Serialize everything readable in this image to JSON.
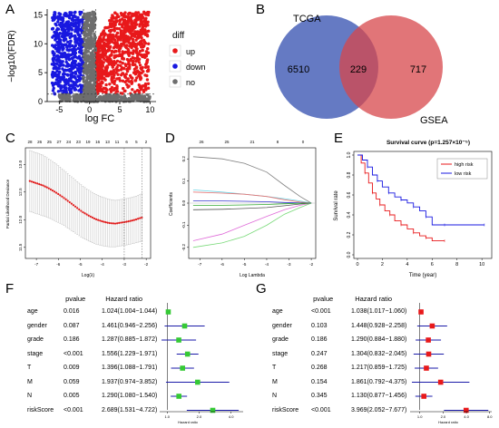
{
  "panels": {
    "A": {
      "label": "A",
      "xlabel": "log FC",
      "ylabel": "−log10(FDR)",
      "xticks": [
        "-5",
        "0",
        "5",
        "10"
      ],
      "yticks": [
        "0",
        "5",
        "10",
        "15"
      ],
      "legend_title": "diff",
      "legend": [
        {
          "name": "up",
          "color": "#e8191b"
        },
        {
          "name": "down",
          "color": "#1818e0"
        },
        {
          "name": "no",
          "color": "#6e6e6e"
        }
      ]
    },
    "B": {
      "label": "B",
      "set_left": "TCGA",
      "set_right": "GSEA",
      "left_only": "6510",
      "overlap": "229",
      "right_only": "717",
      "left_color": "#4a63b8",
      "right_color": "#d7474b"
    },
    "C": {
      "label": "C",
      "top_ticks": [
        "28",
        "26",
        "25",
        "27",
        "24",
        "23",
        "19",
        "16",
        "13",
        "11",
        "6",
        "5",
        "2"
      ],
      "xticks": [
        "-7",
        "-6",
        "-5",
        "-4",
        "-3",
        "-2"
      ],
      "yticks": [
        "11.5",
        "12.0",
        "12.5",
        "13.0"
      ],
      "xlabel": "Log(λ)",
      "ylabel": "Partial Likelihood Deviance"
    },
    "D": {
      "label": "D",
      "top_ticks": [
        "26",
        "25",
        "21",
        "8",
        "0"
      ],
      "xticks": [
        "-7",
        "-6",
        "-5",
        "-4",
        "-3",
        "-2"
      ],
      "yticks": [
        "-0.2",
        "-0.1",
        "0.0",
        "0.1",
        "0.2"
      ],
      "xlabel": "Log Lambda",
      "ylabel": "Coefficients"
    },
    "E": {
      "label": "E",
      "title": "Survival curve (p=1.257×10⁻⁵)",
      "xlabel": "Time (year)",
      "ylabel": "Survival rate",
      "xticks": [
        "0",
        "2",
        "4",
        "6",
        "8",
        "10"
      ],
      "yticks": [
        "0.0",
        "0.2",
        "0.4",
        "0.6",
        "0.8",
        "1.0"
      ],
      "legend": [
        {
          "name": "high risk",
          "color": "#e8191b"
        },
        {
          "name": "low risk",
          "color": "#1818e0"
        }
      ]
    },
    "F": {
      "label": "F",
      "headers": [
        "pvalue",
        "Hazard ratio"
      ],
      "rows": [
        {
          "name": "age",
          "p": "0.016",
          "hr": "1.024(1.004−1.044)"
        },
        {
          "name": "gender",
          "p": "0.087",
          "hr": "1.461(0.946−2.256)"
        },
        {
          "name": "grade",
          "p": "0.186",
          "hr": "1.287(0.885−1.872)"
        },
        {
          "name": "stage",
          "p": "<0.001",
          "hr": "1.556(1.229−1.971)"
        },
        {
          "name": "T",
          "p": "0.009",
          "hr": "1.396(1.088−1.791)"
        },
        {
          "name": "M",
          "p": "0.059",
          "hr": "1.937(0.974−3.852)"
        },
        {
          "name": "N",
          "p": "0.005",
          "hr": "1.290(1.080−1.540)"
        },
        {
          "name": "riskScore",
          "p": "<0.001",
          "hr": "2.689(1.531−4.722)"
        }
      ],
      "xticks": [
        "1.0",
        "2.0",
        "4.0"
      ],
      "xlabel": "Hazard ratio",
      "marker_color": "#35c935"
    },
    "G": {
      "label": "G",
      "headers": [
        "pvalue",
        "Hazard ratio"
      ],
      "rows": [
        {
          "name": "age",
          "p": "<0.001",
          "hr": "1.038(1.017−1.060)"
        },
        {
          "name": "gender",
          "p": "0.103",
          "hr": "1.448(0.928−2.258)"
        },
        {
          "name": "grade",
          "p": "0.186",
          "hr": "1.290(0.884−1.880)"
        },
        {
          "name": "stage",
          "p": "0.247",
          "hr": "1.304(0.832−2.045)"
        },
        {
          "name": "T",
          "p": "0.268",
          "hr": "1.217(0.859−1.725)"
        },
        {
          "name": "M",
          "p": "0.154",
          "hr": "1.861(0.792−4.375)"
        },
        {
          "name": "N",
          "p": "0.345",
          "hr": "1.130(0.877−1.456)"
        },
        {
          "name": "riskScore",
          "p": "<0.001",
          "hr": "3.969(2.052−7.677)"
        }
      ],
      "xticks": [
        "1.0",
        "2.0",
        "4.0",
        "8.0"
      ],
      "xlabel": "Hazard ratio",
      "marker_color": "#e8191b"
    }
  },
  "chart_data": [
    {
      "type": "scatter",
      "panel": "A",
      "xlabel": "log FC",
      "ylabel": "−log10(FDR)",
      "xlim": [
        -7,
        11
      ],
      "ylim": [
        0,
        16
      ],
      "thresholds": {
        "logfc": [
          -1,
          1
        ],
        "fdr_line": 1.3
      },
      "series": [
        {
          "name": "up",
          "color": "#e8191b"
        },
        {
          "name": "down",
          "color": "#1818e0"
        },
        {
          "name": "no",
          "color": "#6e6e6e"
        }
      ]
    },
    {
      "type": "venn",
      "panel": "B",
      "sets": [
        "TCGA",
        "GSEA"
      ],
      "values": {
        "TCGA_only": 6510,
        "both": 229,
        "GSEA_only": 717
      }
    },
    {
      "type": "line",
      "panel": "C",
      "xlabel": "Log(λ)",
      "ylabel": "Partial Likelihood Deviance",
      "xlim": [
        -7.5,
        -1.8
      ],
      "ylim": [
        11.3,
        13.3
      ],
      "x": [
        -7.3,
        -7.0,
        -6.7,
        -6.4,
        -6.1,
        -5.8,
        -5.5,
        -5.2,
        -4.9,
        -4.6,
        -4.3,
        -4.0,
        -3.7,
        -3.4,
        -3.1,
        -2.8,
        -2.5,
        -2.2
      ],
      "y": [
        12.7,
        12.66,
        12.62,
        12.56,
        12.49,
        12.41,
        12.32,
        12.23,
        12.14,
        12.07,
        12.01,
        11.97,
        11.94,
        11.93,
        11.95,
        11.97,
        12.0,
        12.04
      ],
      "err": [
        0.55,
        0.55,
        0.55,
        0.53,
        0.52,
        0.5,
        0.49,
        0.48,
        0.47,
        0.46,
        0.45,
        0.44,
        0.43,
        0.42,
        0.42,
        0.42,
        0.42,
        0.43
      ],
      "vlines": [
        -3.0,
        -2.2
      ]
    },
    {
      "type": "line",
      "panel": "D",
      "xlabel": "Log Lambda",
      "ylabel": "Coefficients",
      "xlim": [
        -7.5,
        -1.8
      ],
      "ylim": [
        -0.25,
        0.25
      ],
      "series": [
        {
          "color": "#808080",
          "x": [
            -7.3,
            -6.0,
            -5.0,
            -4.0,
            -3.2,
            -2.5,
            -2.0
          ],
          "y": [
            0.21,
            0.2,
            0.18,
            0.14,
            0.08,
            0.03,
            0.0
          ]
        },
        {
          "color": "#77d977",
          "x": [
            -7.3,
            -6.0,
            -5.0,
            -4.0,
            -3.2,
            -2.5,
            -2.0
          ],
          "y": [
            -0.2,
            -0.18,
            -0.15,
            -0.1,
            -0.05,
            -0.02,
            0.0
          ]
        },
        {
          "color": "#df6ad8",
          "x": [
            -7.3,
            -6.0,
            -5.0,
            -4.0,
            -3.2,
            -2.5,
            -2.0
          ],
          "y": [
            -0.17,
            -0.14,
            -0.1,
            -0.06,
            -0.03,
            -0.01,
            0.0
          ]
        },
        {
          "color": "#6fd6e6",
          "x": [
            -7.3,
            -6.0,
            -5.0,
            -4.0,
            -3.2,
            -2.5,
            -2.0
          ],
          "y": [
            0.06,
            0.05,
            0.04,
            0.03,
            0.02,
            0.01,
            0.0
          ]
        },
        {
          "color": "#e57575",
          "x": [
            -7.3,
            -6.0,
            -5.0,
            -4.0,
            -3.2,
            -2.5,
            -2.0
          ],
          "y": [
            0.05,
            0.045,
            0.04,
            0.03,
            0.015,
            0.005,
            0.0
          ]
        },
        {
          "color": "#555555",
          "x": [
            -7.3,
            -6.0,
            -5.0,
            -4.0,
            -3.2,
            -2.5,
            -2.0
          ],
          "y": [
            -0.03,
            -0.028,
            -0.024,
            -0.02,
            -0.012,
            -0.004,
            0.0
          ]
        },
        {
          "color": "#3333cc",
          "x": [
            -7.3,
            -6.0,
            -5.0,
            -4.0,
            -3.2,
            -2.5,
            -2.0
          ],
          "y": [
            0.01,
            0.01,
            0.008,
            0.006,
            0.003,
            0.001,
            0.0
          ]
        },
        {
          "color": "#33aa33",
          "x": [
            -7.3,
            -6.0,
            -5.0,
            -4.0,
            -3.2,
            -2.5,
            -2.0
          ],
          "y": [
            -0.01,
            -0.01,
            -0.008,
            -0.006,
            -0.003,
            -0.001,
            0.0
          ]
        }
      ]
    },
    {
      "type": "line",
      "panel": "E",
      "title": "Survival curve (p=1.257×10⁻⁵)",
      "xlabel": "Time (year)",
      "ylabel": "Survival rate",
      "xlim": [
        0,
        10.5
      ],
      "ylim": [
        0,
        1
      ],
      "series": [
        {
          "name": "high risk",
          "color": "#e8191b",
          "x": [
            0,
            0.3,
            0.6,
            0.9,
            1.2,
            1.5,
            1.8,
            2.2,
            2.6,
            3.0,
            3.5,
            4.0,
            4.5,
            5.0,
            5.5,
            6.0,
            7.0
          ],
          "y": [
            1.0,
            0.92,
            0.82,
            0.72,
            0.62,
            0.56,
            0.5,
            0.44,
            0.4,
            0.34,
            0.3,
            0.26,
            0.22,
            0.19,
            0.17,
            0.14,
            0.14
          ]
        },
        {
          "name": "low risk",
          "color": "#1818e0",
          "x": [
            0,
            0.4,
            0.8,
            1.2,
            1.6,
            2.0,
            2.5,
            3.0,
            3.5,
            4.0,
            4.5,
            5.0,
            5.5,
            6.0,
            7.0,
            8.0,
            10.2
          ],
          "y": [
            1.0,
            0.95,
            0.88,
            0.8,
            0.74,
            0.68,
            0.62,
            0.58,
            0.55,
            0.52,
            0.48,
            0.44,
            0.38,
            0.3,
            0.3,
            0.3,
            0.3
          ]
        }
      ]
    },
    {
      "type": "forest",
      "panel": "F",
      "labels": [
        "age",
        "gender",
        "grade",
        "stage",
        "T",
        "M",
        "N",
        "riskScore"
      ],
      "hr": [
        1.024,
        1.461,
        1.287,
        1.556,
        1.396,
        1.937,
        1.29,
        2.689
      ],
      "lower": [
        1.004,
        0.946,
        0.885,
        1.229,
        1.088,
        0.974,
        1.08,
        1.531
      ],
      "upper": [
        1.044,
        2.256,
        1.872,
        1.971,
        1.791,
        3.852,
        1.54,
        4.722
      ],
      "xlabel": "Hazard ratio",
      "scale": "log"
    },
    {
      "type": "forest",
      "panel": "G",
      "labels": [
        "age",
        "gender",
        "grade",
        "stage",
        "T",
        "M",
        "N",
        "riskScore"
      ],
      "hr": [
        1.038,
        1.448,
        1.29,
        1.304,
        1.217,
        1.861,
        1.13,
        3.969
      ],
      "lower": [
        1.017,
        0.928,
        0.884,
        0.832,
        0.859,
        0.792,
        0.877,
        2.052
      ],
      "upper": [
        1.06,
        2.258,
        1.88,
        2.045,
        1.725,
        4.375,
        1.456,
        7.677
      ],
      "xlabel": "Hazard ratio",
      "scale": "log"
    }
  ]
}
